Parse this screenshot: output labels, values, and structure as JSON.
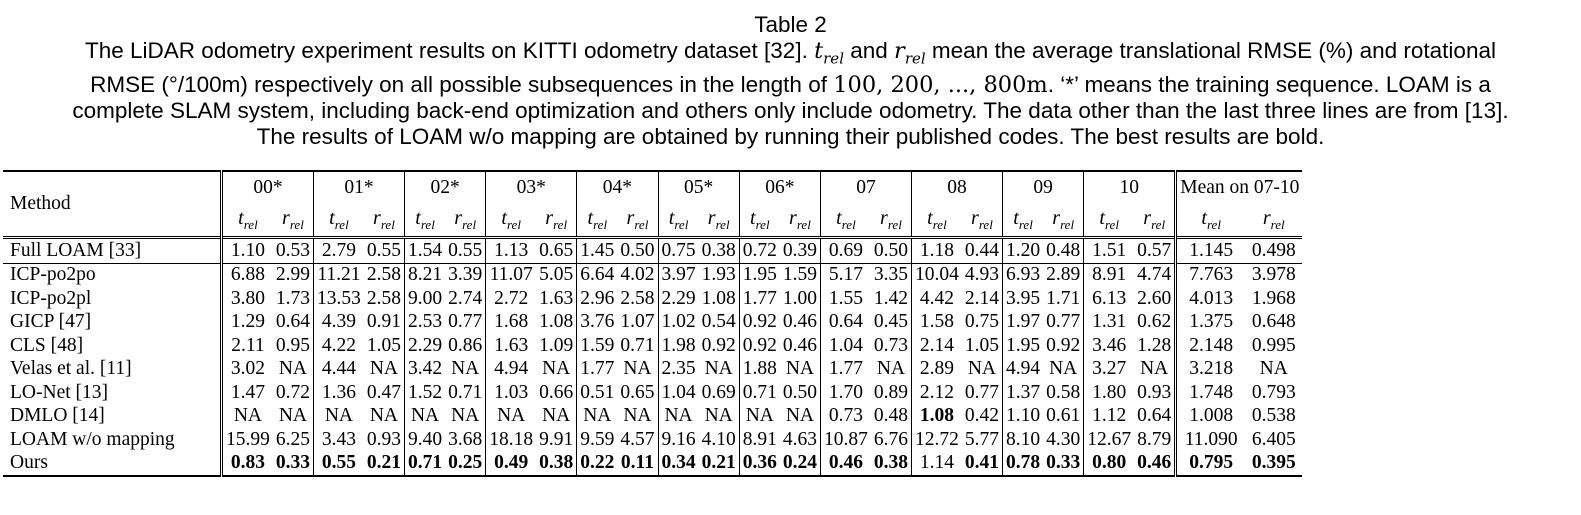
{
  "caption": {
    "title": "Table 2",
    "p1": "The LiDAR odometry experiment results on KITTI odometry dataset [32]. ",
    "t_rel": "t",
    "r_rel": "r",
    "rel": "rel",
    "p2": " and ",
    "p3": " mean the average translational RMSE (%) and rotational",
    "p4": "RMSE (°/100m) respectively on all possible subsequences in the length of ",
    "lengths": "100, 200, ..., 800m",
    "p5": ". ‘*’ means the training sequence. LOAM is a",
    "p6": "complete SLAM system, including back-end optimization and others only include odometry. The data other than the last three lines are from [13].",
    "p7": "The results of LOAM w/o mapping are obtained by running their published codes. The best results are bold."
  },
  "table": {
    "method_header": "Method",
    "sequences": [
      "00*",
      "01*",
      "02*",
      "03*",
      "04*",
      "05*",
      "06*",
      "07",
      "08",
      "09",
      "10",
      "Mean on 07-10"
    ],
    "rows": [
      {
        "method": "Full LOAM [33]",
        "values": [
          "1.10",
          "0.53",
          "2.79",
          "0.55",
          "1.54",
          "0.55",
          "1.13",
          "0.65",
          "1.45",
          "0.50",
          "0.75",
          "0.38",
          "0.72",
          "0.39",
          "0.69",
          "0.50",
          "1.18",
          "0.44",
          "1.20",
          "0.48",
          "1.51",
          "0.57",
          "1.145",
          "0.498"
        ],
        "bold": []
      },
      {
        "method": "ICP-po2po",
        "values": [
          "6.88",
          "2.99",
          "11.21",
          "2.58",
          "8.21",
          "3.39",
          "11.07",
          "5.05",
          "6.64",
          "4.02",
          "3.97",
          "1.93",
          "1.95",
          "1.59",
          "5.17",
          "3.35",
          "10.04",
          "4.93",
          "6.93",
          "2.89",
          "8.91",
          "4.74",
          "7.763",
          "3.978"
        ],
        "bold": []
      },
      {
        "method": "ICP-po2pl",
        "values": [
          "3.80",
          "1.73",
          "13.53",
          "2.58",
          "9.00",
          "2.74",
          "2.72",
          "1.63",
          "2.96",
          "2.58",
          "2.29",
          "1.08",
          "1.77",
          "1.00",
          "1.55",
          "1.42",
          "4.42",
          "2.14",
          "3.95",
          "1.71",
          "6.13",
          "2.60",
          "4.013",
          "1.968"
        ],
        "bold": []
      },
      {
        "method": "GICP [47]",
        "values": [
          "1.29",
          "0.64",
          "4.39",
          "0.91",
          "2.53",
          "0.77",
          "1.68",
          "1.08",
          "3.76",
          "1.07",
          "1.02",
          "0.54",
          "0.92",
          "0.46",
          "0.64",
          "0.45",
          "1.58",
          "0.75",
          "1.97",
          "0.77",
          "1.31",
          "0.62",
          "1.375",
          "0.648"
        ],
        "bold": []
      },
      {
        "method": "CLS [48]",
        "values": [
          "2.11",
          "0.95",
          "4.22",
          "1.05",
          "2.29",
          "0.86",
          "1.63",
          "1.09",
          "1.59",
          "0.71",
          "1.98",
          "0.92",
          "0.92",
          "0.46",
          "1.04",
          "0.73",
          "2.14",
          "1.05",
          "1.95",
          "0.92",
          "3.46",
          "1.28",
          "2.148",
          "0.995"
        ],
        "bold": []
      },
      {
        "method": "Velas et al. [11]",
        "values": [
          "3.02",
          "NA",
          "4.44",
          "NA",
          "3.42",
          "NA",
          "4.94",
          "NA",
          "1.77",
          "NA",
          "2.35",
          "NA",
          "1.88",
          "NA",
          "1.77",
          "NA",
          "2.89",
          "NA",
          "4.94",
          "NA",
          "3.27",
          "NA",
          "3.218",
          "NA"
        ],
        "bold": []
      },
      {
        "method": "LO-Net [13]",
        "values": [
          "1.47",
          "0.72",
          "1.36",
          "0.47",
          "1.52",
          "0.71",
          "1.03",
          "0.66",
          "0.51",
          "0.65",
          "1.04",
          "0.69",
          "0.71",
          "0.50",
          "1.70",
          "0.89",
          "2.12",
          "0.77",
          "1.37",
          "0.58",
          "1.80",
          "0.93",
          "1.748",
          "0.793"
        ],
        "bold": []
      },
      {
        "method": "DMLO [14]",
        "values": [
          "NA",
          "NA",
          "NA",
          "NA",
          "NA",
          "NA",
          "NA",
          "NA",
          "NA",
          "NA",
          "NA",
          "NA",
          "NA",
          "NA",
          "0.73",
          "0.48",
          "1.08",
          "0.42",
          "1.10",
          "0.61",
          "1.12",
          "0.64",
          "1.008",
          "0.538"
        ],
        "bold": [
          16
        ]
      },
      {
        "method": "LOAM w/o mapping",
        "values": [
          "15.99",
          "6.25",
          "3.43",
          "0.93",
          "9.40",
          "3.68",
          "18.18",
          "9.91",
          "9.59",
          "4.57",
          "9.16",
          "4.10",
          "8.91",
          "4.63",
          "10.87",
          "6.76",
          "12.72",
          "5.77",
          "8.10",
          "4.30",
          "12.67",
          "8.79",
          "11.090",
          "6.405"
        ],
        "bold": []
      },
      {
        "method": "Ours",
        "values": [
          "0.83",
          "0.33",
          "0.55",
          "0.21",
          "0.71",
          "0.25",
          "0.49",
          "0.38",
          "0.22",
          "0.11",
          "0.34",
          "0.21",
          "0.36",
          "0.24",
          "0.46",
          "0.38",
          "1.14",
          "0.41",
          "0.78",
          "0.33",
          "0.80",
          "0.46",
          "0.795",
          "0.395"
        ],
        "bold": [
          0,
          1,
          2,
          3,
          4,
          5,
          6,
          7,
          8,
          9,
          10,
          11,
          12,
          13,
          14,
          15,
          17,
          18,
          19,
          20,
          21,
          22,
          23
        ]
      }
    ]
  }
}
